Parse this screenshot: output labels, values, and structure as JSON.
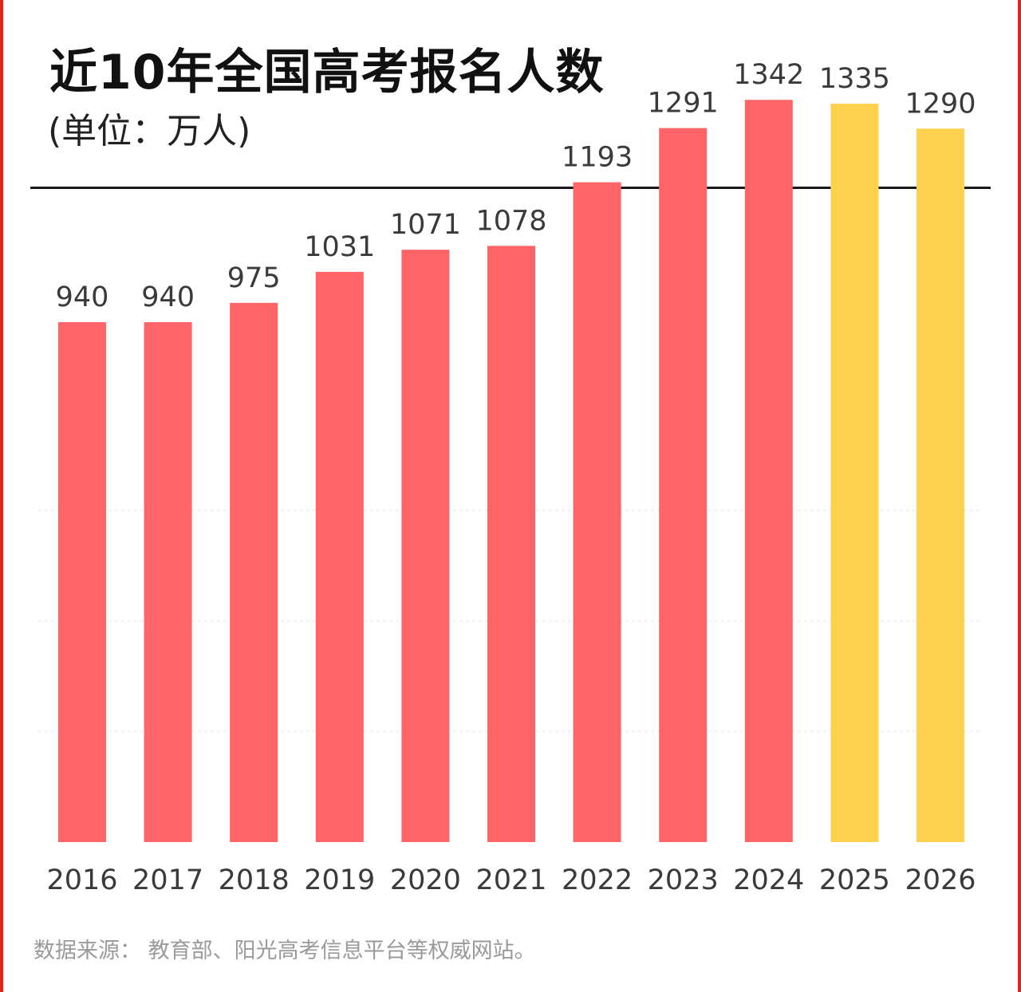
{
  "header": {
    "title": "近10年全国高考报名人数",
    "subtitle": "(单位：万人)"
  },
  "footer": {
    "source": "数据来源：  教育部、阳光高考信息平台等权威网站。"
  },
  "colors": {
    "actual": "#ff6467",
    "forecast": "#fed14e",
    "accent_edge": "#e2231a"
  },
  "chart_data": {
    "type": "bar",
    "title": "近10年全国高考报名人数",
    "subtitle": "(单位：万人)",
    "categories": [
      "2016",
      "2017",
      "2018",
      "2019",
      "2020",
      "2021",
      "2022",
      "2023",
      "2024",
      "2025",
      "2026"
    ],
    "values": [
      940,
      940,
      975,
      1031,
      1071,
      1078,
      1193,
      1291,
      1342,
      1335,
      1290
    ],
    "value_labels": [
      "940",
      "940",
      "975",
      "1031",
      "1071",
      "1078",
      "1193",
      "1291",
      "1342",
      "1335",
      "1290"
    ],
    "bar_colors": [
      "#ff6467",
      "#ff6467",
      "#ff6467",
      "#ff6467",
      "#ff6467",
      "#ff6467",
      "#ff6467",
      "#ff6467",
      "#ff6467",
      "#fed14e",
      "#fed14e"
    ],
    "ylim": [
      0,
      1400
    ],
    "grid": true,
    "xlabel": "",
    "ylabel": ""
  }
}
